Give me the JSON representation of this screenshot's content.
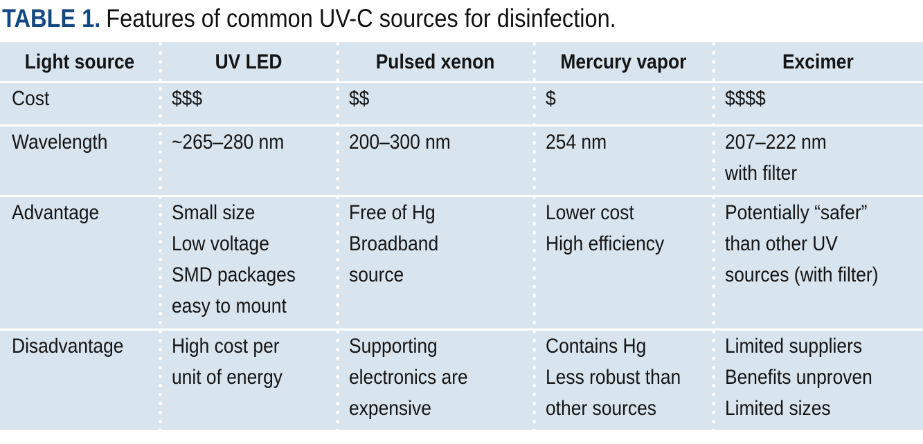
{
  "title": {
    "label": "TABLE 1.",
    "text": "Features of common UV-C sources for disinfection."
  },
  "colors": {
    "table_background": "#d9e5ee",
    "caption_accent": "#144880",
    "separator": "#ffffff",
    "text": "#141414"
  },
  "table": {
    "header": [
      "Light source",
      "UV LED",
      "Pulsed xenon",
      "Mercury vapor",
      "Excimer"
    ],
    "rows": [
      {
        "label": "Cost",
        "cells": [
          [
            "$$$"
          ],
          [
            "$$"
          ],
          [
            "$"
          ],
          [
            "$$$$"
          ]
        ]
      },
      {
        "label": "Wavelength",
        "cells": [
          [
            "~265–280 nm"
          ],
          [
            "200–300 nm"
          ],
          [
            "254 nm"
          ],
          [
            "207–222 nm",
            "with filter"
          ]
        ]
      },
      {
        "label": "Advantage",
        "cells": [
          [
            "Small size",
            "Low voltage",
            "SMD packages",
            "easy to mount"
          ],
          [
            "Free of Hg",
            "Broadband",
            "source"
          ],
          [
            "Lower cost",
            "High efficiency"
          ],
          [
            "Potentially “safer”",
            "than other UV",
            "sources (with filter)"
          ]
        ]
      },
      {
        "label": "Disadvantage",
        "cells": [
          [
            "High cost per",
            "unit of energy"
          ],
          [
            "Supporting",
            "electronics are",
            "expensive"
          ],
          [
            "Contains Hg",
            "Less robust than",
            "other sources"
          ],
          [
            "Limited suppliers",
            "Benefits unproven",
            "Limited sizes"
          ]
        ]
      }
    ]
  }
}
